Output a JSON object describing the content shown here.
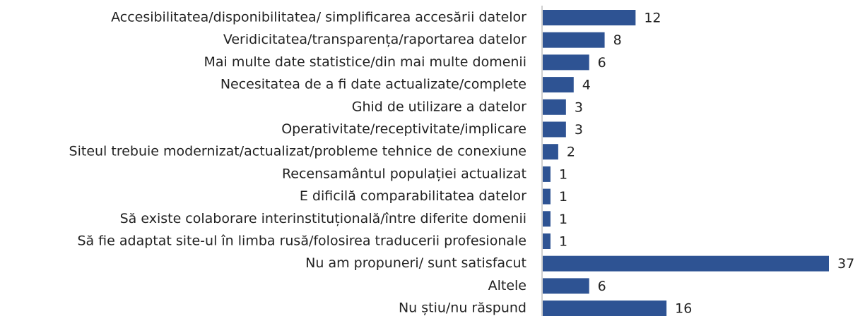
{
  "chart_data": {
    "type": "bar",
    "orientation": "horizontal",
    "categories": [
      "Accesibilitatea/disponibilitatea/ simplificarea accesării datelor",
      "Veridicitatea/transparența/raportarea datelor",
      "Mai multe date statistice/din mai multe domenii",
      "Necesitatea de a fi date actualizate/complete",
      "Ghid de utilizare a datelor",
      "Operativitate/receptivitate/implicare",
      "Siteul trebuie modernizat/actualizat/probleme tehnice de conexiune",
      "Recensamântul populației actualizat",
      "E dificilă comparabilitatea datelor",
      "Să existe colaborare interinstituțională/între diferite domenii",
      "Să fie adaptat site-ul în limba rusă/folosirea traducerii profesionale",
      "Nu am propuneri/ sunt satisfacut",
      "Altele",
      "Nu știu/nu răspund"
    ],
    "values": [
      12,
      8,
      6,
      4,
      3,
      3,
      2,
      1,
      1,
      1,
      1,
      37,
      6,
      16
    ],
    "color": "#2e5393"
  }
}
